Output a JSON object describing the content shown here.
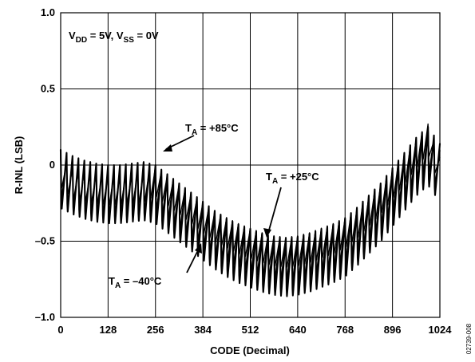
{
  "chart_data": {
    "type": "line",
    "xlabel": "CODE (Decimal)",
    "ylabel": "R-INL (LSB)",
    "xlim": [
      0,
      1024
    ],
    "ylim": [
      -1.0,
      1.0
    ],
    "x_ticks": [
      "0",
      "128",
      "256",
      "384",
      "512",
      "640",
      "768",
      "896",
      "1024"
    ],
    "y_ticks": [
      "1.0",
      "0.5",
      "0",
      "–0.5",
      "–1.0"
    ],
    "grid": true,
    "condition_note": {
      "v1": "V",
      "v1_sub": "DD",
      "v1_val": " = 5V, ",
      "v2": "V",
      "v2_sub": "SS",
      "v2_val": " = 0V"
    },
    "annotations": [
      {
        "label": "T",
        "sub": "A",
        "value": " = +85°C",
        "x": 285,
        "y": 0.09
      },
      {
        "label": "T",
        "sub": "A",
        "value": " = +25°C",
        "x": 565,
        "y": -0.47
      },
      {
        "label": "T",
        "sub": "A",
        "value": " = –40°C",
        "x": 375,
        "y": -0.52
      }
    ],
    "series": [
      {
        "name": "T<sub>A</sub> = +85°C",
        "points": [
          [
            0,
            0
          ],
          [
            32,
            -0.08
          ],
          [
            64,
            -0.1
          ],
          [
            96,
            -0.11
          ],
          [
            128,
            -0.12
          ],
          [
            160,
            -0.12
          ],
          [
            192,
            -0.11
          ],
          [
            224,
            -0.1
          ],
          [
            256,
            -0.06
          ],
          [
            288,
            -0.12
          ],
          [
            320,
            -0.18
          ],
          [
            352,
            -0.24
          ],
          [
            384,
            -0.3
          ],
          [
            416,
            -0.36
          ],
          [
            448,
            -0.4
          ],
          [
            480,
            -0.44
          ],
          [
            512,
            -0.47
          ],
          [
            544,
            -0.5
          ],
          [
            576,
            -0.52
          ],
          [
            608,
            -0.53
          ],
          [
            640,
            -0.52
          ],
          [
            672,
            -0.5
          ],
          [
            704,
            -0.47
          ],
          [
            736,
            -0.44
          ],
          [
            768,
            -0.4
          ],
          [
            800,
            -0.34
          ],
          [
            832,
            -0.26
          ],
          [
            864,
            -0.18
          ],
          [
            896,
            -0.08
          ],
          [
            928,
            0.02
          ],
          [
            960,
            0.12
          ],
          [
            992,
            0.22
          ],
          [
            1024,
            0.0
          ]
        ],
        "sawtooth_amplitude": 0.2
      },
      {
        "name": "T<sub>A</sub> = +25°C",
        "points": [
          [
            0,
            0
          ],
          [
            32,
            -0.06
          ],
          [
            64,
            -0.09
          ],
          [
            96,
            -0.1
          ],
          [
            128,
            -0.11
          ],
          [
            160,
            -0.11
          ],
          [
            192,
            -0.1
          ],
          [
            224,
            -0.09
          ],
          [
            256,
            -0.08
          ],
          [
            288,
            -0.14
          ],
          [
            320,
            -0.2
          ],
          [
            352,
            -0.26
          ],
          [
            384,
            -0.32
          ],
          [
            416,
            -0.38
          ],
          [
            448,
            -0.42
          ],
          [
            480,
            -0.46
          ],
          [
            512,
            -0.49
          ],
          [
            544,
            -0.52
          ],
          [
            576,
            -0.54
          ],
          [
            608,
            -0.55
          ],
          [
            640,
            -0.54
          ],
          [
            672,
            -0.52
          ],
          [
            704,
            -0.49
          ],
          [
            736,
            -0.46
          ],
          [
            768,
            -0.42
          ],
          [
            800,
            -0.36
          ],
          [
            832,
            -0.28
          ],
          [
            864,
            -0.2
          ],
          [
            896,
            -0.1
          ],
          [
            928,
            0.0
          ],
          [
            960,
            0.1
          ],
          [
            992,
            0.18
          ],
          [
            1024,
            0.02
          ]
        ],
        "sawtooth_amplitude": 0.3
      },
      {
        "name": "T<sub>A</sub> = –40°C",
        "points": [
          [
            0,
            0
          ],
          [
            32,
            -0.04
          ],
          [
            64,
            -0.07
          ],
          [
            96,
            -0.09
          ],
          [
            128,
            -0.1
          ],
          [
            160,
            -0.1
          ],
          [
            192,
            -0.09
          ],
          [
            224,
            -0.08
          ],
          [
            256,
            -0.1
          ],
          [
            288,
            -0.16
          ],
          [
            320,
            -0.22
          ],
          [
            352,
            -0.28
          ],
          [
            384,
            -0.34
          ],
          [
            416,
            -0.4
          ],
          [
            448,
            -0.45
          ],
          [
            480,
            -0.49
          ],
          [
            512,
            -0.52
          ],
          [
            544,
            -0.55
          ],
          [
            576,
            -0.57
          ],
          [
            608,
            -0.58
          ],
          [
            640,
            -0.57
          ],
          [
            672,
            -0.55
          ],
          [
            704,
            -0.52
          ],
          [
            736,
            -0.49
          ],
          [
            768,
            -0.45
          ],
          [
            800,
            -0.38
          ],
          [
            832,
            -0.3
          ],
          [
            864,
            -0.22
          ],
          [
            896,
            -0.12
          ],
          [
            928,
            -0.02
          ],
          [
            960,
            0.08
          ],
          [
            992,
            0.15
          ],
          [
            1024,
            0.04
          ]
        ],
        "sawtooth_amplitude": 0.4
      }
    ]
  },
  "figure_id": "02739-008",
  "colors": {
    "axis": "#000000",
    "grid": "#000000",
    "series": "#000000"
  }
}
